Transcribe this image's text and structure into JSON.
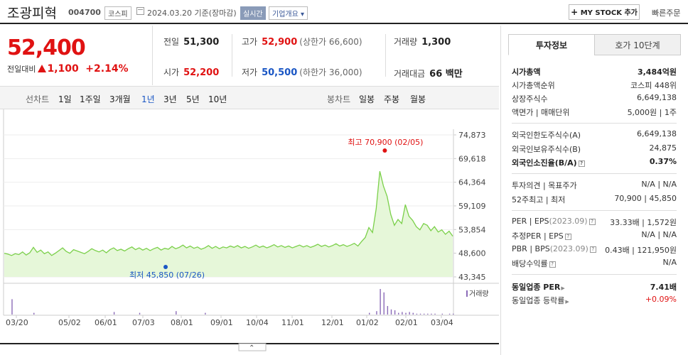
{
  "header": {
    "name": "조광피혁",
    "code": "004700",
    "market": "코스피",
    "date": "2024.03.20",
    "basis": "기준(장마감)",
    "realtime": "실시간",
    "company_info": "기업개요",
    "my_stock": "MY STOCK 추가",
    "quick_order": "빠른주문"
  },
  "price": {
    "current": "52,400",
    "change_label": "전일대비",
    "change": "1,100",
    "change_pct": "+2.14%"
  },
  "stats": {
    "prev_close_label": "전일",
    "prev_close": "51,300",
    "high_label": "고가",
    "high": "52,900",
    "upper_limit": "(상한가 66,600)",
    "volume_label": "거래량",
    "volume": "1,300",
    "open_label": "시가",
    "open": "52,200",
    "low_label": "저가",
    "low": "50,500",
    "lower_limit": "(하한가 36,000)",
    "amount_label": "거래대금",
    "amount": "66 백만"
  },
  "toolbar": {
    "line_label": "선차트",
    "periods": [
      "1일",
      "1주일",
      "3개월",
      "1년",
      "3년",
      "5년",
      "10년"
    ],
    "active_period": "1년",
    "candle_label": "봉차트",
    "candles": [
      "일봉",
      "주봉",
      "월봉"
    ]
  },
  "chart_data": {
    "type": "area",
    "y_ticks": [
      "74,873",
      "69,618",
      "64,364",
      "59,109",
      "53,854",
      "48,600",
      "43,345"
    ],
    "ylim": [
      43345,
      74873
    ],
    "x_ticks": [
      "03/20",
      "05/02",
      "06/01",
      "07/03",
      "08/01",
      "09/01",
      "10/04",
      "11/01",
      "12/01",
      "01/02",
      "02/01",
      "03/04"
    ],
    "high_label": "최고 70,900 (02/05)",
    "low_label": "최저 45,850 (07/26)",
    "volume_legend": "거래량",
    "series": [
      {
        "values": [
          48600,
          48400,
          48100,
          48500,
          48300,
          48900,
          48200,
          48700,
          49900,
          48800,
          49300,
          48500,
          48900,
          48100,
          48600,
          49200,
          49800,
          49000,
          48600,
          49400,
          49100,
          48800,
          48500,
          49000,
          49600,
          49200,
          48900,
          49300,
          48700,
          49400,
          49800,
          49200,
          49500,
          49100,
          49600,
          50000,
          49400,
          49800,
          49300,
          49700,
          49200,
          49600,
          49900,
          49300,
          49700,
          49500,
          50100,
          49600,
          49900,
          50400,
          49800,
          50200,
          49700,
          50000,
          49500,
          49800,
          50300,
          49700,
          50100,
          49600,
          50000,
          49800,
          50200,
          49900,
          50300,
          49800,
          50100,
          49700,
          50000,
          50400,
          49900,
          50200,
          49800,
          50100,
          50500,
          50000,
          50300,
          49900,
          50200,
          49800,
          50100,
          50400,
          50000,
          50300,
          49900,
          50200,
          50600,
          50100,
          50400,
          50000,
          50300,
          50700,
          50200,
          50500,
          50100,
          50400,
          50800,
          50200,
          51200,
          52100,
          54300,
          53200,
          58500,
          66800,
          63500,
          61200,
          57200,
          54800,
          56100,
          55200,
          59400,
          56800,
          55900,
          54500,
          53800,
          55200,
          54800,
          53600,
          54500,
          53300,
          53800,
          52800,
          53500,
          52400
        ]
      }
    ],
    "volume": [
      0,
      0,
      18,
      0,
      0,
      0,
      0,
      0,
      2,
      0,
      0,
      0,
      0,
      0,
      0,
      0,
      0,
      0,
      0,
      0,
      0,
      0,
      0,
      0,
      0,
      0,
      0,
      0,
      0,
      0,
      3,
      0,
      0,
      0,
      0,
      0,
      0,
      2,
      0,
      0,
      0,
      0,
      0,
      0,
      0,
      0,
      0,
      4,
      0,
      0,
      0,
      0,
      0,
      0,
      0,
      2,
      0,
      0,
      0,
      0,
      0,
      0,
      0,
      0,
      0,
      0,
      0,
      0,
      0,
      0,
      0,
      0,
      0,
      0,
      0,
      0,
      0,
      0,
      0,
      0,
      0,
      0,
      0,
      0,
      0,
      0,
      0,
      0,
      0,
      0,
      0,
      0,
      0,
      0,
      0,
      0,
      0,
      0,
      0,
      0,
      2,
      0,
      4,
      30,
      26,
      10,
      6,
      5,
      2,
      3,
      2,
      3,
      2,
      1,
      1,
      1,
      1,
      1,
      1,
      0,
      1,
      0,
      1,
      1
    ]
  },
  "panel": {
    "tab_on": "투자정보",
    "tab_off": "호가 10단계",
    "rows": {
      "mktcap_k": "시가총액",
      "mktcap_v": "3,484억원",
      "rank_k": "시가총액순위",
      "rank_v": "코스피 448위",
      "shares_k": "상장주식수",
      "shares_v": "6,649,138",
      "par_k": "액면가 | 매매단위",
      "par_v": "5,000원 | 1주",
      "fl_lim_k": "외국인한도주식수(A)",
      "fl_lim_v": "6,649,138",
      "fl_hold_k": "외국인보유주식수(B)",
      "fl_hold_v": "24,875",
      "fl_rate_k": "외국인소진율(B/A)",
      "fl_rate_v": "0.37%",
      "opinion_k": "투자의견 | 목표주가",
      "opinion_v": "N/A | N/A",
      "w52_k": "52주최고 | 최저",
      "w52_v": "70,900 | 45,850",
      "per_k": "PER | EPS",
      "per_year": "(2023.09)",
      "per_v": "33.33배 | 1,572원",
      "eper_k": "추정PER | EPS",
      "eper_v": "N/A | N/A",
      "pbr_k": "PBR | BPS",
      "pbr_year": "(2023.09)",
      "pbr_v": "0.43배 | 121,950원",
      "div_k": "배당수익률",
      "div_v": "N/A",
      "ind_per_k": "동일업종 PER",
      "ind_per_v": "7.41배",
      "ind_chg_k": "동일업종 등락률",
      "ind_chg_v": "+0.09%"
    }
  },
  "colors": {
    "up": "#e01212",
    "down": "#1a56c4",
    "line": "#7bd04a",
    "fill": "#e6f7d9"
  }
}
